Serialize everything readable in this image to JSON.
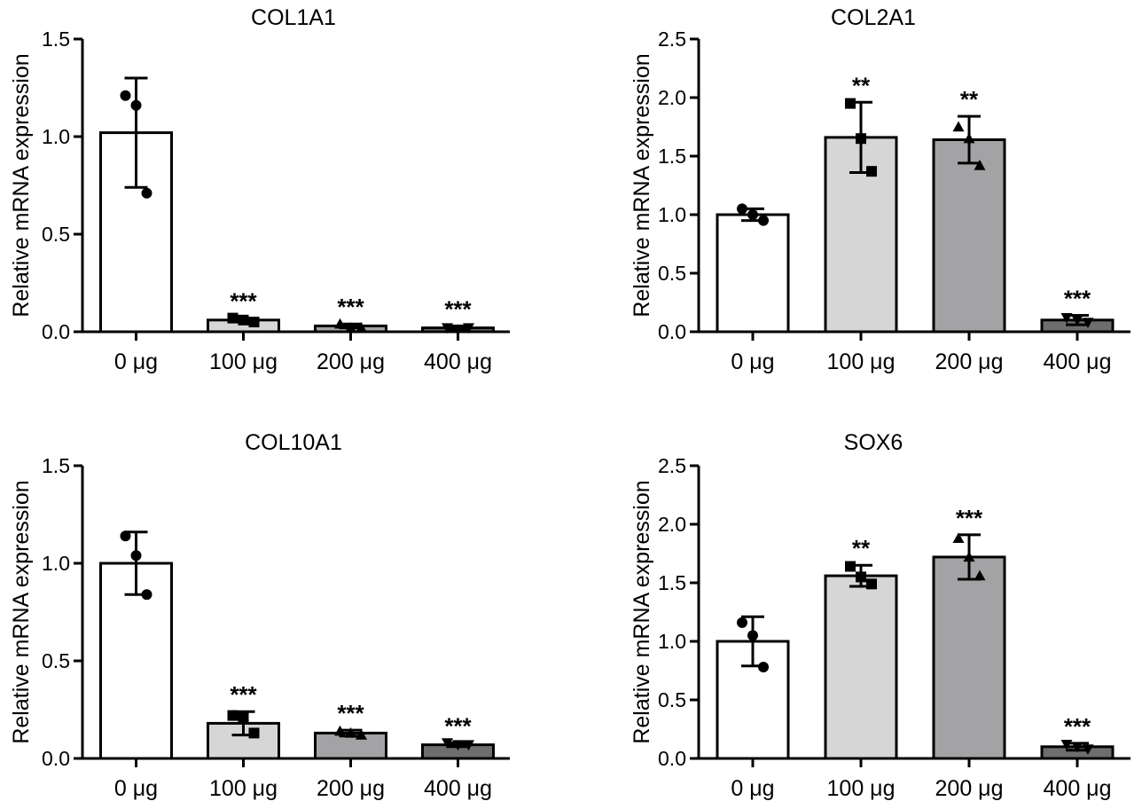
{
  "chart_data": [
    {
      "type": "bar",
      "title": "COL1A1",
      "ylabel": "Relative mRNA expression",
      "categories": [
        "0 μg",
        "100 μg",
        "200 μg",
        "400 μg"
      ],
      "ylim": [
        0,
        1.5
      ],
      "yticks": [
        "0.0",
        "0.5",
        "1.0",
        "1.5"
      ],
      "means": [
        1.02,
        0.06,
        0.03,
        0.02
      ],
      "errors": [
        0.28,
        0.01,
        0.01,
        0.01
      ],
      "points": [
        [
          1.21,
          1.16,
          0.71
        ],
        [
          0.07,
          0.06,
          0.05
        ],
        [
          0.04,
          0.02,
          0.02
        ],
        [
          0.02,
          0.01,
          0.02
        ]
      ],
      "markers": [
        "circle",
        "square",
        "triangle",
        "triangle-down"
      ],
      "fills": [
        "#ffffff",
        "#d6d6d6",
        "#a3a3a6",
        "#6e6e6e"
      ],
      "significance": [
        "",
        "***",
        "***",
        "***"
      ]
    },
    {
      "type": "bar",
      "title": "COL2A1",
      "ylabel": "Relative mRNA expression",
      "categories": [
        "0 μg",
        "100 μg",
        "200 μg",
        "400 μg"
      ],
      "ylim": [
        0,
        2.5
      ],
      "yticks": [
        "0.0",
        "0.5",
        "1.0",
        "1.5",
        "2.0",
        "2.5"
      ],
      "means": [
        1.0,
        1.66,
        1.64,
        0.1
      ],
      "errors": [
        0.05,
        0.3,
        0.2,
        0.04
      ],
      "points": [
        [
          1.05,
          1.0,
          0.95
        ],
        [
          1.95,
          1.65,
          1.37
        ],
        [
          1.75,
          1.65,
          1.42
        ],
        [
          0.12,
          0.1,
          0.08
        ]
      ],
      "markers": [
        "circle",
        "square",
        "triangle",
        "triangle-down"
      ],
      "fills": [
        "#ffffff",
        "#d6d6d6",
        "#a3a3a6",
        "#6e6e6e"
      ],
      "significance": [
        "",
        "**",
        "**",
        "***"
      ]
    },
    {
      "type": "bar",
      "title": "COL10A1",
      "ylabel": "Relative mRNA expression",
      "categories": [
        "0 μg",
        "100 μg",
        "200 μg",
        "400 μg"
      ],
      "ylim": [
        0,
        1.5
      ],
      "yticks": [
        "0.0",
        "0.5",
        "1.0",
        "1.5"
      ],
      "means": [
        1.0,
        0.18,
        0.13,
        0.07
      ],
      "errors": [
        0.16,
        0.06,
        0.015,
        0.01
      ],
      "points": [
        [
          1.14,
          1.04,
          0.84
        ],
        [
          0.22,
          0.21,
          0.13
        ],
        [
          0.14,
          0.13,
          0.12
        ],
        [
          0.08,
          0.07,
          0.07
        ]
      ],
      "markers": [
        "circle",
        "square",
        "triangle",
        "triangle-down"
      ],
      "fills": [
        "#ffffff",
        "#d6d6d6",
        "#a3a3a6",
        "#6e6e6e"
      ],
      "significance": [
        "",
        "***",
        "***",
        "***"
      ]
    },
    {
      "type": "bar",
      "title": "SOX6",
      "ylabel": "Relative mRNA expression",
      "categories": [
        "0 μg",
        "100 μg",
        "200 μg",
        "400 μg"
      ],
      "ylim": [
        0,
        2.5
      ],
      "yticks": [
        "0.0",
        "0.5",
        "1.0",
        "1.5",
        "2.0",
        "2.5"
      ],
      "means": [
        1.0,
        1.56,
        1.72,
        0.1
      ],
      "errors": [
        0.21,
        0.09,
        0.19,
        0.03
      ],
      "points": [
        [
          1.16,
          1.05,
          0.78
        ],
        [
          1.64,
          1.55,
          1.49
        ],
        [
          1.88,
          1.72,
          1.56
        ],
        [
          0.12,
          0.1,
          0.08
        ]
      ],
      "markers": [
        "circle",
        "square",
        "triangle",
        "triangle-down"
      ],
      "fills": [
        "#ffffff",
        "#d6d6d6",
        "#a3a3a6",
        "#6e6e6e"
      ],
      "significance": [
        "",
        "**",
        "***",
        "***"
      ]
    }
  ]
}
